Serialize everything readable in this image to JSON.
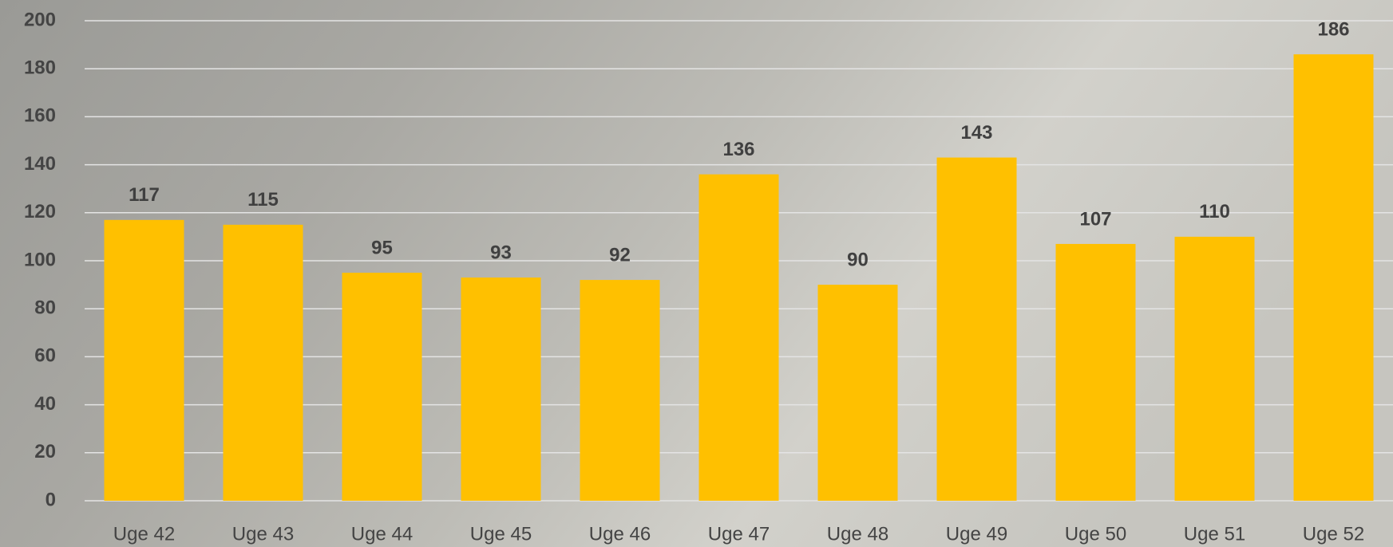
{
  "chart_data": {
    "type": "bar",
    "categories": [
      "Uge 42",
      "Uge 43",
      "Uge 44",
      "Uge 45",
      "Uge 46",
      "Uge 47",
      "Uge 48",
      "Uge 49",
      "Uge 50",
      "Uge 51",
      "Uge 52"
    ],
    "values": [
      117,
      115,
      95,
      93,
      92,
      136,
      90,
      143,
      107,
      110,
      186
    ],
    "color": "#ffc000",
    "ylim": [
      0,
      200
    ],
    "yticks": [
      0,
      20,
      40,
      60,
      80,
      100,
      120,
      140,
      160,
      180,
      200
    ],
    "grid": true
  }
}
